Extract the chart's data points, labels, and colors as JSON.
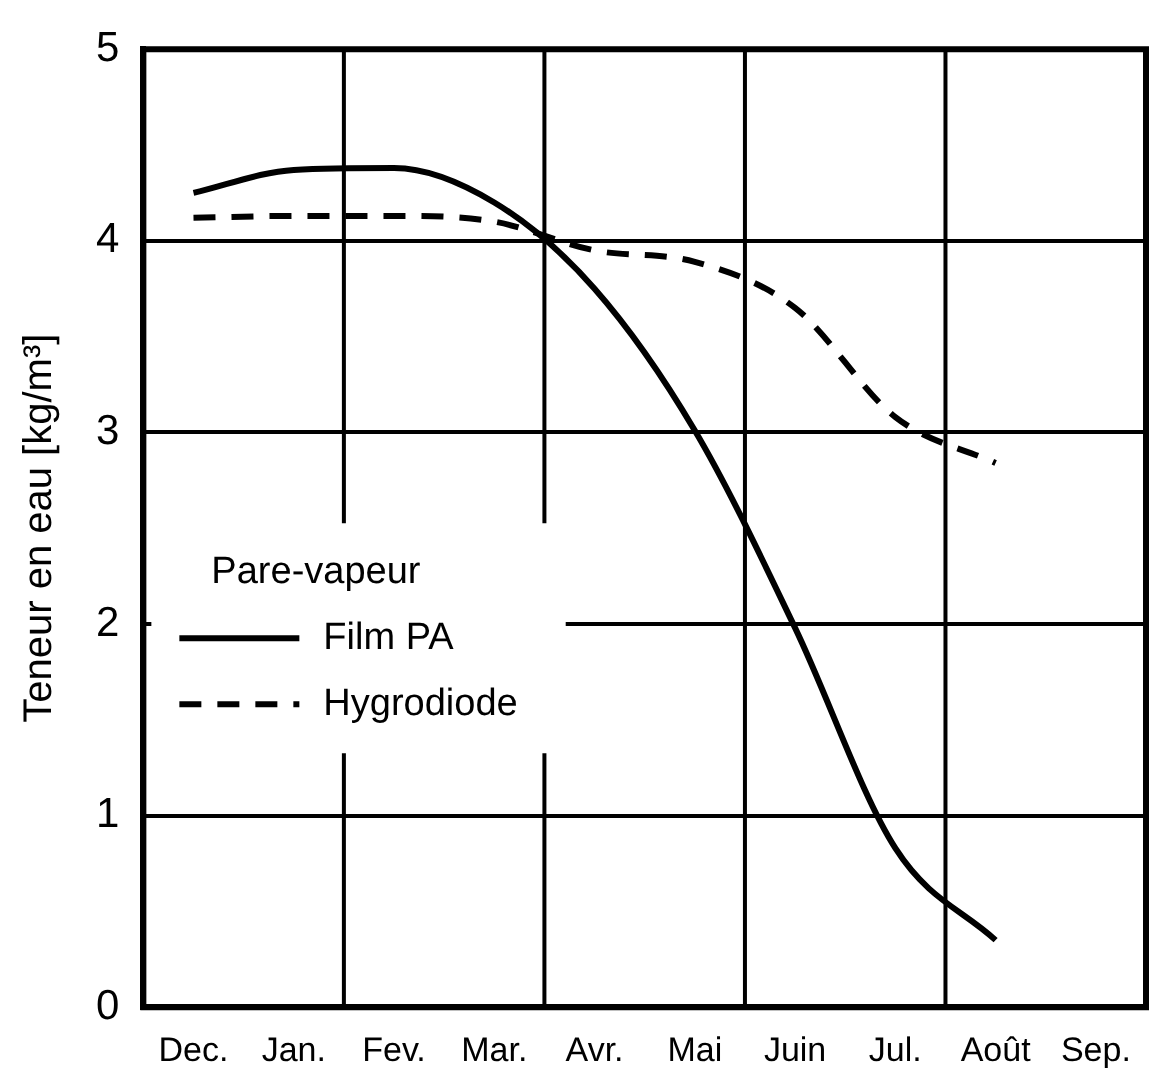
{
  "chart_data": {
    "type": "line",
    "ylabel": "Teneur en eau [kg/m³]",
    "legend_title": "Pare-vapeur",
    "legend": "left",
    "grid": true,
    "marker": "none",
    "categories": [
      "Dec.",
      "Jan.",
      "Fev.",
      "Mar.",
      "Avr.",
      "Mai",
      "Juin",
      "Jul.",
      "Août",
      "Sep."
    ],
    "ylim": [
      0,
      5
    ],
    "yticks": [
      0,
      1,
      2,
      3,
      4,
      5
    ],
    "series": [
      {
        "name": "Film PA",
        "color": "#000000",
        "line_style": "solid",
        "values": [
          4.25,
          4.37,
          4.38,
          4.2,
          3.75,
          3.01,
          1.98,
          0.83,
          0.35,
          null
        ]
      },
      {
        "name": "Hygrodiode",
        "color": "#000000",
        "line_style": "dashed",
        "values": [
          4.12,
          4.13,
          4.13,
          4.1,
          3.95,
          3.89,
          3.65,
          3.08,
          2.84,
          null
        ]
      }
    ]
  }
}
